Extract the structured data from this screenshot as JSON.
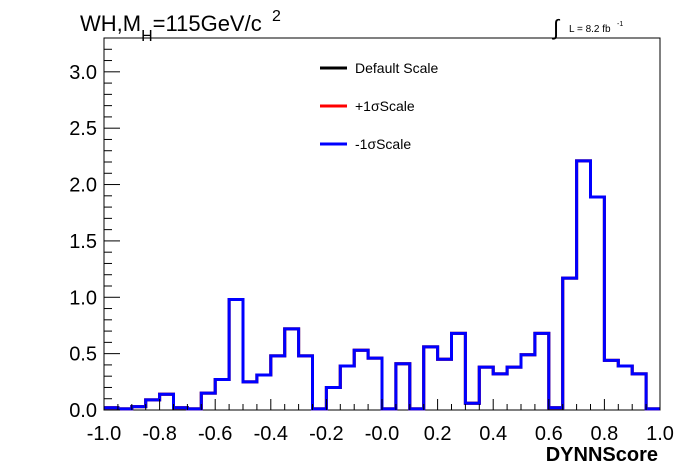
{
  "chart_data": {
    "type": "line",
    "drawstyle": "steps",
    "title": {
      "main": "WH,M",
      "sub": "H",
      "rest": "=115GeV/c",
      "sup": "2"
    },
    "lumi": {
      "integral": "∫",
      "text": "L = 8.2 fb",
      "sup": "-1"
    },
    "xlabel": "DYNNScore",
    "xlim": [
      -1.0,
      1.0
    ],
    "ylim": [
      0.0,
      3.3
    ],
    "xticks": [
      "-1.0",
      "-0.8",
      "-0.6",
      "-0.4",
      "-0.2",
      "-0.0",
      "0.2",
      "0.4",
      "0.6",
      "0.8",
      "1.0"
    ],
    "xtick_values": [
      -1.0,
      -0.8,
      -0.6,
      -0.4,
      -0.2,
      0.0,
      0.2,
      0.4,
      0.6,
      0.8,
      1.0
    ],
    "yticks": [
      "0.0",
      "0.5",
      "1.0",
      "1.5",
      "2.0",
      "2.5",
      "3.0"
    ],
    "ytick_values": [
      0.0,
      0.5,
      1.0,
      1.5,
      2.0,
      2.5,
      3.0
    ],
    "legend_placement": "top-center",
    "bin_edges": [
      -1.0,
      -0.95,
      -0.9,
      -0.85,
      -0.8,
      -0.75,
      -0.7,
      -0.65,
      -0.6,
      -0.55,
      -0.5,
      -0.45,
      -0.4,
      -0.35,
      -0.3,
      -0.25,
      -0.2,
      -0.15,
      -0.1,
      -0.05,
      0.0,
      0.05,
      0.1,
      0.15,
      0.2,
      0.25,
      0.3,
      0.35,
      0.4,
      0.45,
      0.5,
      0.55,
      0.6,
      0.65,
      0.7,
      0.75,
      0.8,
      0.85,
      0.9,
      0.95,
      1.0
    ],
    "series": [
      {
        "name": "Default Scale",
        "color": "#000000",
        "values": [
          0.02,
          0.01,
          0.03,
          0.09,
          0.14,
          0.02,
          0.01,
          0.15,
          0.27,
          0.98,
          0.25,
          0.31,
          0.48,
          0.72,
          0.48,
          0.01,
          0.2,
          0.39,
          0.53,
          0.46,
          0.01,
          0.41,
          0.01,
          0.56,
          0.45,
          0.68,
          0.06,
          0.38,
          0.32,
          0.38,
          0.49,
          0.68,
          0.02,
          1.17,
          2.21,
          1.89,
          0.44,
          0.39,
          0.32,
          0.01
        ]
      },
      {
        "name": "+1σScale",
        "color": "#ff0000",
        "values": [
          0.02,
          0.01,
          0.03,
          0.09,
          0.14,
          0.02,
          0.01,
          0.15,
          0.27,
          0.98,
          0.25,
          0.31,
          0.48,
          0.72,
          0.48,
          0.01,
          0.2,
          0.39,
          0.53,
          0.46,
          0.01,
          0.41,
          0.01,
          0.56,
          0.45,
          0.68,
          0.06,
          0.38,
          0.32,
          0.38,
          0.49,
          0.68,
          0.02,
          1.17,
          2.21,
          1.89,
          0.44,
          0.39,
          0.32,
          0.01
        ]
      },
      {
        "name": "-1σScale",
        "color": "#0000ff",
        "values": [
          0.02,
          0.01,
          0.03,
          0.09,
          0.14,
          0.02,
          0.01,
          0.15,
          0.27,
          0.98,
          0.25,
          0.31,
          0.48,
          0.72,
          0.48,
          0.01,
          0.2,
          0.39,
          0.53,
          0.46,
          0.01,
          0.41,
          0.01,
          0.56,
          0.45,
          0.68,
          0.06,
          0.38,
          0.32,
          0.38,
          0.49,
          0.68,
          0.02,
          1.17,
          2.21,
          1.89,
          0.44,
          0.39,
          0.32,
          0.01
        ]
      }
    ]
  }
}
